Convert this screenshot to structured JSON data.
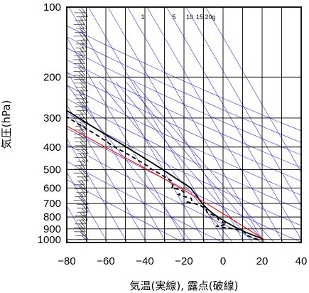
{
  "chart_data": {
    "type": "line",
    "subtype": "skew-T log-p thermodynamic diagram",
    "xlabel": "気温(実線), 露点(破線)",
    "ylabel": "気圧(hPa)",
    "x_ticks": [
      -80,
      -60,
      -40,
      -20,
      0,
      20,
      40
    ],
    "xlim": [
      -80,
      40
    ],
    "y_scale": "log",
    "y_ticks": [
      100,
      200,
      300,
      400,
      500,
      600,
      700,
      800,
      900,
      1000
    ],
    "ylim": [
      1030,
      100
    ],
    "mixing_ratio_labels": [
      "1",
      "5",
      "10",
      "15",
      "20g"
    ],
    "colors": {
      "temperature": "#000000",
      "dewpoint": "#000000",
      "parcel": "#ff0000",
      "background_lines": "#3333dd",
      "grid": "#000000",
      "barbs": "#444444"
    },
    "series": [
      {
        "style": "solid",
        "points": [
          [
            1000,
            21
          ],
          [
            975,
            18.5
          ],
          [
            950,
            15.8
          ],
          [
            925,
            13.2
          ],
          [
            900,
            11.2
          ],
          [
            875,
            9.2
          ],
          [
            850,
            7.3
          ],
          [
            825,
            5.6
          ],
          [
            800,
            4.1
          ],
          [
            775,
            2.7
          ],
          [
            750,
            1.5
          ],
          [
            725,
            0.7
          ],
          [
            700,
            0.1
          ],
          [
            675,
            -0.3
          ],
          [
            650,
            -0.6
          ],
          [
            625,
            -0.9
          ],
          [
            600,
            -1.3
          ],
          [
            575,
            -3.2
          ],
          [
            550,
            -5.6
          ],
          [
            525,
            -7.8
          ],
          [
            500,
            -10.2
          ],
          [
            475,
            -12.8
          ],
          [
            450,
            -15.7
          ],
          [
            425,
            -18.8
          ],
          [
            400,
            -22.0
          ],
          [
            375,
            -25.6
          ],
          [
            350,
            -29.5
          ],
          [
            325,
            -33.6
          ],
          [
            300,
            -37.8
          ],
          [
            275,
            -42.5
          ],
          [
            250,
            -47.6
          ],
          [
            225,
            -52.8
          ],
          [
            200,
            -58.0
          ],
          [
            180,
            -62.5
          ],
          [
            160,
            -66.5
          ],
          [
            150,
            -68.5
          ],
          [
            140,
            -70.0
          ],
          [
            130,
            -71.8
          ],
          [
            120,
            -73.2
          ],
          [
            110,
            -74.5
          ],
          [
            100,
            -75.8
          ]
        ]
      },
      {
        "style": "dashed",
        "points": [
          [
            1000,
            18
          ],
          [
            980,
            15.3
          ],
          [
            960,
            13.5
          ],
          [
            940,
            13.5
          ],
          [
            925,
            12.5
          ],
          [
            910,
            11.2
          ],
          [
            900,
            9.0
          ],
          [
            885,
            3.0
          ],
          [
            875,
            0.5
          ],
          [
            868,
            4.0
          ],
          [
            855,
            6.5
          ],
          [
            840,
            4.8
          ],
          [
            820,
            3.5
          ],
          [
            800,
            3.8
          ],
          [
            780,
            1.5
          ],
          [
            760,
            -0.2
          ],
          [
            740,
            0.5
          ],
          [
            720,
            -1.0
          ],
          [
            700,
            -3.8
          ],
          [
            690,
            -7.0
          ],
          [
            680,
            -4.5
          ],
          [
            665,
            -4.0
          ],
          [
            650,
            -8.0
          ],
          [
            640,
            -9.5
          ],
          [
            625,
            -6.0
          ],
          [
            610,
            -7.0
          ],
          [
            600,
            -11.0
          ],
          [
            585,
            -9.5
          ],
          [
            560,
            -9.0
          ],
          [
            540,
            -11.0
          ],
          [
            520,
            -13.0
          ],
          [
            500,
            -15.5
          ],
          [
            480,
            -17.0
          ],
          [
            460,
            -19.5
          ],
          [
            440,
            -22.0
          ],
          [
            420,
            -24.8
          ],
          [
            400,
            -28.0
          ],
          [
            380,
            -30.5
          ],
          [
            360,
            -33.0
          ],
          [
            340,
            -36.0
          ],
          [
            320,
            -39.5
          ],
          [
            300,
            -43.0
          ],
          [
            290,
            -44.5
          ],
          [
            275,
            -49.0
          ],
          [
            262,
            -63.0
          ],
          [
            260,
            -77.0
          ],
          [
            255,
            -79.0
          ],
          [
            245,
            -82.0
          ]
        ]
      },
      {
        "style": "solid-red",
        "points": [
          [
            1000,
            21
          ],
          [
            950,
            18.5
          ],
          [
            900,
            15.6
          ],
          [
            850,
            12.6
          ],
          [
            800,
            9.5
          ],
          [
            750,
            6.0
          ],
          [
            700,
            2.3
          ],
          [
            650,
            -1.9
          ],
          [
            600,
            -6.6
          ],
          [
            550,
            -11.9
          ],
          [
            500,
            -18.0
          ],
          [
            450,
            -25.0
          ],
          [
            400,
            -32.8
          ],
          [
            350,
            -41.5
          ],
          [
            300,
            -51.5
          ],
          [
            250,
            -62.5
          ],
          [
            200,
            -75.0
          ],
          [
            180,
            -80.0
          ]
        ]
      }
    ]
  }
}
